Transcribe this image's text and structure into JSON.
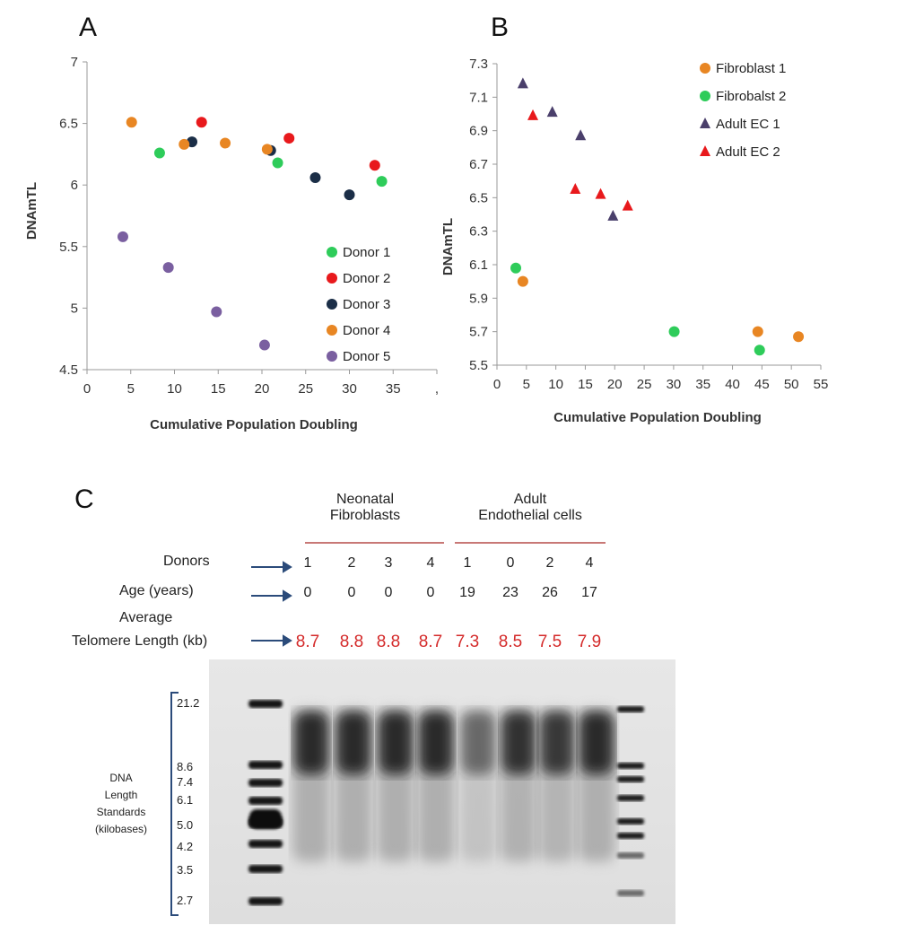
{
  "panel_labels": {
    "a": "A",
    "b": "B",
    "c": "C"
  },
  "chart_data": [
    {
      "type": "scatter",
      "panel": "A",
      "xlabel": "Cumulative Population Doubling",
      "ylabel": "DNAmTL",
      "xlim": [
        0,
        40
      ],
      "ylim": [
        4.5,
        7
      ],
      "xticks": [
        "0",
        "5",
        "10",
        "15",
        "20",
        "25",
        "30",
        "35",
        ","
      ],
      "yticks": [
        "7",
        "6.5",
        "6",
        "5.5",
        "5",
        "4.5"
      ],
      "legend_position": "bottom-right",
      "series": [
        {
          "name": "Donor 1",
          "color": "#2ecc5a",
          "marker": "circle",
          "points": [
            [
              8.3,
              6.26
            ],
            [
              21.8,
              6.18
            ],
            [
              33.7,
              6.03
            ]
          ]
        },
        {
          "name": "Donor 2",
          "color": "#e8191c",
          "marker": "circle",
          "points": [
            [
              13.1,
              6.51
            ],
            [
              23.1,
              6.38
            ],
            [
              32.9,
              6.16
            ]
          ]
        },
        {
          "name": "Donor 3",
          "color": "#1b2e47",
          "marker": "circle",
          "points": [
            [
              12.0,
              6.35
            ],
            [
              21.0,
              6.28
            ],
            [
              26.1,
              6.06
            ],
            [
              30.0,
              5.92
            ]
          ]
        },
        {
          "name": "Donor 4",
          "color": "#e88623",
          "marker": "circle",
          "points": [
            [
              5.1,
              6.51
            ],
            [
              11.1,
              6.33
            ],
            [
              15.8,
              6.34
            ],
            [
              20.6,
              6.29
            ]
          ]
        },
        {
          "name": "Donor 5",
          "color": "#7a5fa0",
          "marker": "circle",
          "points": [
            [
              4.1,
              5.58
            ],
            [
              9.3,
              5.33
            ],
            [
              14.8,
              4.97
            ],
            [
              20.3,
              4.7
            ]
          ]
        }
      ]
    },
    {
      "type": "scatter",
      "panel": "B",
      "xlabel": "Cumulative Population Doubling",
      "ylabel": "DNAmTL",
      "xlim": [
        0,
        55
      ],
      "ylim": [
        5.5,
        7.3
      ],
      "xticks": [
        "0",
        "5",
        "10",
        "15",
        "20",
        "25",
        "30",
        "35",
        "40",
        "45",
        "50",
        "55"
      ],
      "yticks": [
        "7.3",
        "7.1",
        "6.9",
        "6.7",
        "6.5",
        "6.3",
        "6.1",
        "5.9",
        "5.7",
        "5.5"
      ],
      "legend_position": "top-right",
      "series": [
        {
          "name": "Fibroblast 1",
          "color": "#e88623",
          "marker": "circle",
          "points": [
            [
              4.4,
              6.0
            ],
            [
              44.3,
              5.7
            ],
            [
              51.2,
              5.67
            ]
          ]
        },
        {
          "name": "Fibrobalst 2",
          "color": "#2ecc5a",
          "marker": "circle",
          "points": [
            [
              3.2,
              6.08
            ],
            [
              30.1,
              5.7
            ],
            [
              44.6,
              5.59
            ]
          ]
        },
        {
          "name": "Adult EC 1",
          "color": "#4a3f6b",
          "marker": "triangle",
          "points": [
            [
              4.4,
              7.18
            ],
            [
              9.4,
              7.01
            ],
            [
              14.2,
              6.87
            ],
            [
              19.7,
              6.39
            ]
          ]
        },
        {
          "name": "Adult EC 2",
          "color": "#e8191c",
          "marker": "triangle",
          "points": [
            [
              6.1,
              6.99
            ],
            [
              13.3,
              6.55
            ],
            [
              17.6,
              6.52
            ],
            [
              22.2,
              6.45
            ]
          ]
        }
      ]
    }
  ],
  "panel_c": {
    "group1_title_lines": [
      "Neonatal",
      "Fibroblasts"
    ],
    "group2_title_lines": [
      "Adult",
      "Endothelial cells"
    ],
    "rows": {
      "donors_label": "Donors",
      "age_label": "Age (years)",
      "tl_label_line1": "Average",
      "tl_label_line2": "Telomere Length (kb)"
    },
    "donors": [
      "1",
      "2",
      "3",
      "4",
      "1",
      "0",
      "2",
      "4"
    ],
    "ages": [
      "0",
      "0",
      "0",
      "0",
      "19",
      "23",
      "26",
      "17"
    ],
    "telomere_lengths": [
      "8.7",
      "8.8",
      "8.8",
      "8.7",
      "7.3",
      "8.5",
      "7.5",
      "7.9"
    ],
    "standards_label_lines": [
      "DNA",
      "Length",
      "Standards",
      "(kilobases)"
    ],
    "standards_kb": [
      "21.2",
      "8.6",
      "7.4",
      "6.1",
      "5.0",
      "4.2",
      "3.5",
      "2.7"
    ],
    "colors": {
      "tl_text": "#d42a2a",
      "group_line": "#c87876",
      "arrow": "#2b4b7a"
    }
  }
}
